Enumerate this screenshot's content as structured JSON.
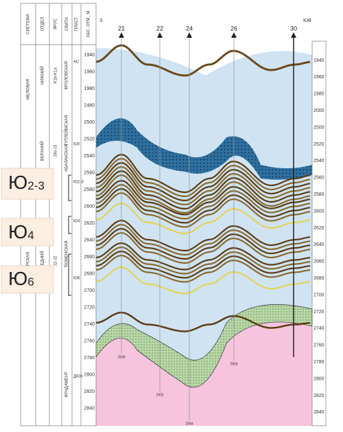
{
  "header": {
    "columns": [
      "СИСТЕМА",
      "ОТДЕЛ",
      "ЯРУС",
      "СВИТА",
      "ПЛАСТ",
      "АБС. ОТМ., М"
    ],
    "west": "З",
    "east": "ЮВ"
  },
  "stratigraphy": {
    "system": [
      "МЕЛОВАЯ",
      "ЮРСКАЯ"
    ],
    "series": [
      "НИЖНИЙ",
      "ВЕРХНИЙ",
      "СРЕДНИЙ"
    ],
    "stage": [
      "K1b-K1a",
      "J3o-J3",
      "J2-J2"
    ],
    "suites": [
      "ФРОЛОВСКАЯ",
      "ТУТЛЕЙМСКАЯ",
      "АБАЛАКСКАЯ",
      "ТЮМЕНСКАЯ",
      "ФУНДАМЕНТ"
    ],
    "layers": [
      "АС",
      "Ю0",
      "Ю2-3",
      "Ю4",
      "Ю6",
      "ДЮК"
    ]
  },
  "wells": [
    "21",
    "22",
    "24",
    "26",
    "30"
  ],
  "well_bottoms": [
    "2848",
    "2902",
    "2944",
    "2856"
  ],
  "depth_left": [
    "1940",
    "1960",
    "1980",
    "2480",
    "2500",
    "2520",
    "2540",
    "2560",
    "2580",
    "2600",
    "2620",
    "2640",
    "2660",
    "2680",
    "2700",
    "2720",
    "2740",
    "2760",
    "2780",
    "2800",
    "2820",
    "2840"
  ],
  "depth_right": [
    "1940",
    "1960",
    "1980",
    "2000",
    "2500",
    "2520",
    "2540",
    "2560",
    "2580",
    "2600",
    "2620",
    "2640",
    "2660",
    "2680",
    "2700",
    "2720",
    "2740",
    "2760",
    "2780",
    "2800",
    "2820",
    "2840"
  ],
  "callouts": [
    {
      "letter": "Ю",
      "index": "2-3"
    },
    {
      "letter": "Ю",
      "index": "4"
    },
    {
      "letter": "Ю",
      "index": "6"
    }
  ]
}
